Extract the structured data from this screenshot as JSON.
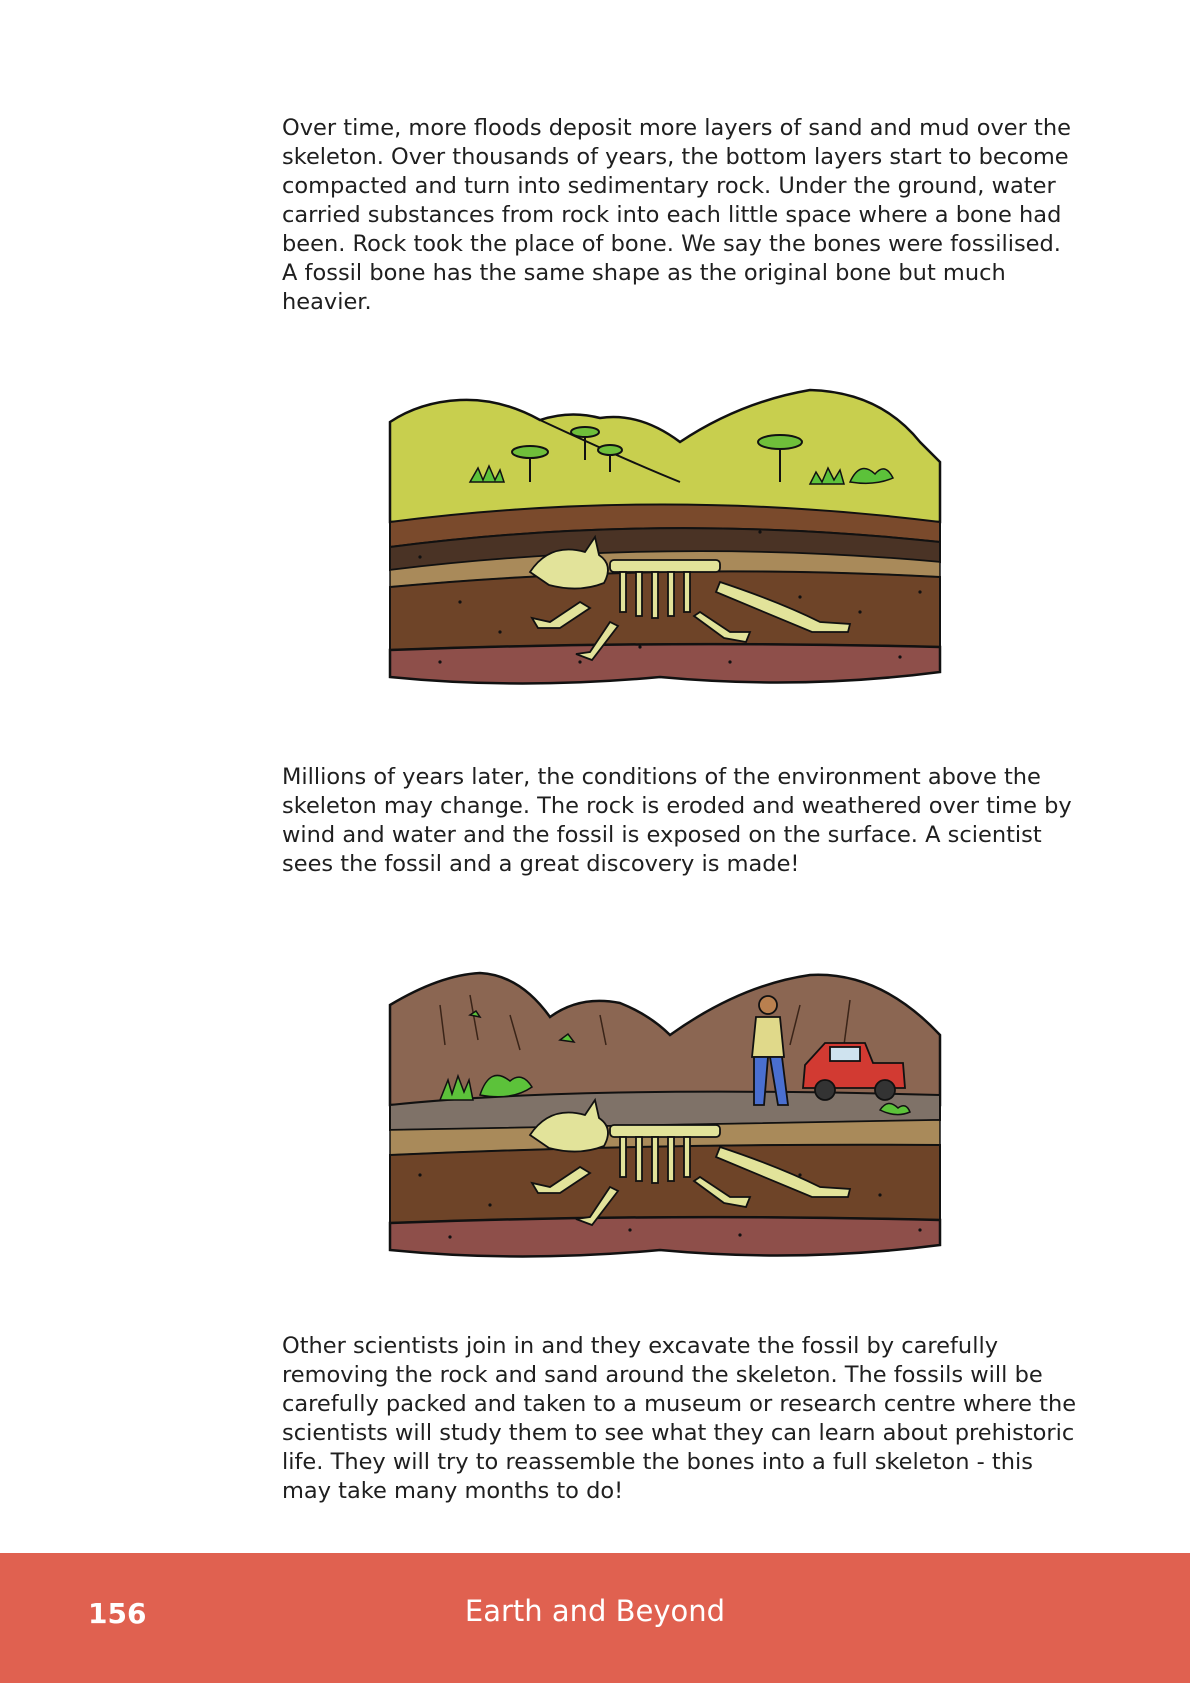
{
  "paragraphs": {
    "p1": "Over time, more floods deposit more layers of sand and mud over the skeleton. Over thousands of years, the bottom layers start to become compacted and turn into sedimentary rock. Under the ground, water carried substances from rock into each little space where a bone had been. Rock took the place of bone. We say the bones were fossilised. A fossil bone has the same shape as the original bone but much heavier.",
    "p2": "Millions of years later, the conditions of the environment above the skeleton may change. The rock is eroded and weathered over time by wind and water and the fossil is exposed on the surface. A scientist sees the fossil and a great discovery is made!",
    "p3": "Other scientists join in and they excavate the fossil by carefully removing the rock and sand around the skeleton. The fossils will be carefully packed and taken to a museum or research centre where the scientists will study them to see what they can learn about prehistoric life. They will try to reassemble the bones into a full skeleton - this may take many months to do!"
  },
  "footer": {
    "page_number": "156",
    "title": "Earth and Beyond"
  },
  "colors": {
    "footer_bg": "#e06150",
    "grass": "#c8cf4e",
    "soil_dark": "#5b3a22",
    "soil_mid": "#7a4a2c",
    "soil_red": "#8e4f4a",
    "bone": "#e2e39a",
    "hills_brown": "#8b6652",
    "truck_red": "#d23a32"
  },
  "icons": [
    "triceratops-skeleton",
    "scientist-figure",
    "pickup-truck",
    "acacia-tree",
    "shrub"
  ]
}
